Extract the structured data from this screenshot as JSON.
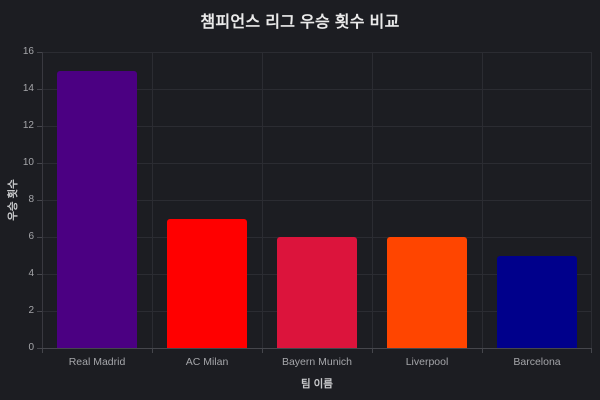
{
  "chart_data": {
    "type": "bar",
    "title": "챔피언스 리그 우승 횟수 비교",
    "xlabel": "팀 이름",
    "ylabel": "우승 횟수",
    "categories": [
      "Real Madrid",
      "AC Milan",
      "Bayern Munich",
      "Liverpool",
      "Barcelona"
    ],
    "values": [
      15,
      7,
      6,
      6,
      5
    ],
    "bar_colors": [
      "#4B0082",
      "#FF0000",
      "#DC143C",
      "#FF4500",
      "#00008B"
    ],
    "ylim": [
      0,
      16
    ],
    "yticks": [
      0,
      2,
      4,
      6,
      8,
      10,
      12,
      14,
      16
    ],
    "grid": "horizontal-and-vertical",
    "legend": "none",
    "theme": {
      "background": "#1C1D22",
      "grid_color": "#2B2C32",
      "axis_color": "#45464C",
      "title_color": "#EAEAEA",
      "tick_label_color": "#A5A6AA",
      "axis_label_color": "#C9CACC"
    }
  }
}
